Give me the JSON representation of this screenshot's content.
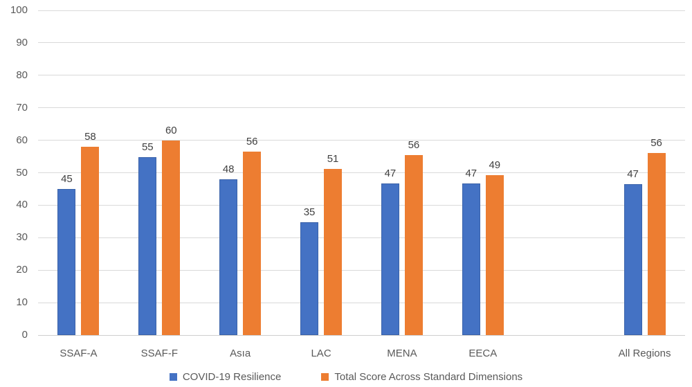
{
  "chart_data": {
    "type": "bar",
    "title": "",
    "categories": [
      "SSAF-A",
      "SSAF-F",
      "Asıa",
      "LAC",
      "MENA",
      "EECA",
      "",
      "All Regions"
    ],
    "series": [
      {
        "name": "COVID-19 Resilience",
        "color": "#4472C4",
        "border_color": "#3A62A9",
        "values": [
          45,
          55,
          48,
          35,
          47,
          47,
          null,
          47
        ],
        "rendered_heights": [
          45,
          54.7,
          48,
          34.8,
          46.6,
          46.6,
          null,
          46.5
        ]
      },
      {
        "name": "Total Score Across Standard Dimensions",
        "color": "#ED7D31",
        "border_color": "#ED7D31",
        "values": [
          58,
          60,
          56,
          51,
          56,
          49,
          null,
          56
        ],
        "rendered_heights": [
          58,
          60,
          56.4,
          51.2,
          55.4,
          49.3,
          null,
          56
        ]
      }
    ],
    "ylim": [
      0,
      100
    ],
    "yticks": [
      0,
      10,
      20,
      30,
      40,
      50,
      60,
      70,
      80,
      90,
      100
    ],
    "grid": true,
    "legend_position": "bottom",
    "gridline_color": "#D9D9D9",
    "axis_label_color": "#595959",
    "data_label_color": "#404040",
    "background_color": "#FFFFFF"
  }
}
